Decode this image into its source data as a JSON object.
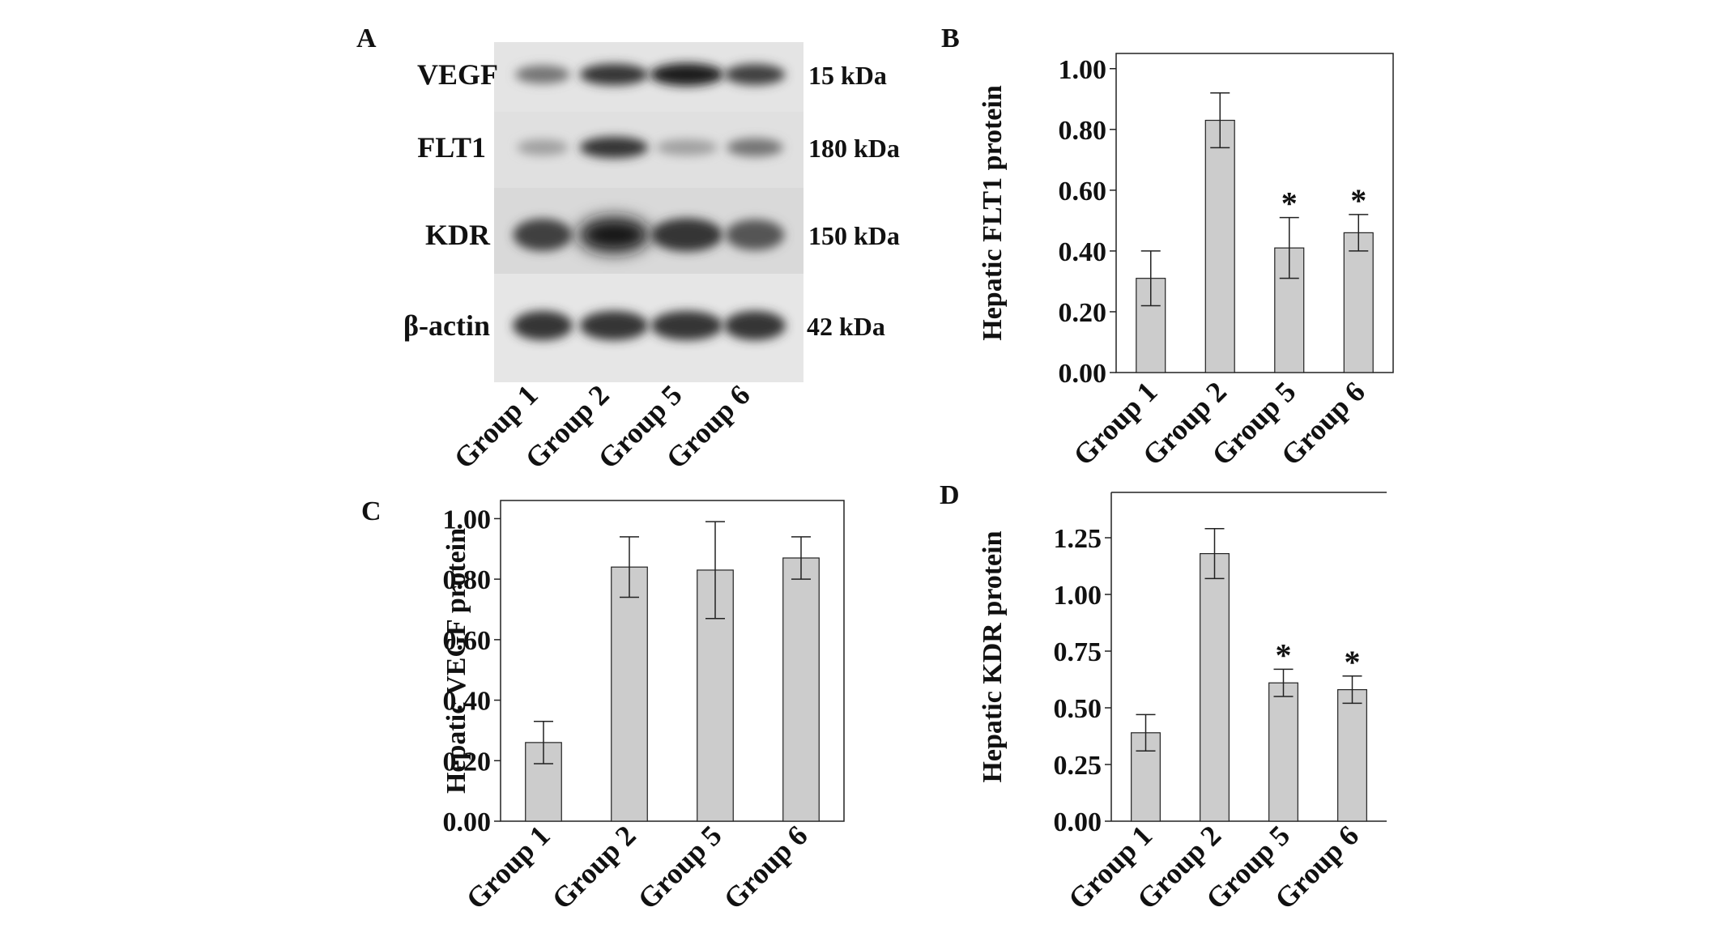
{
  "panels": {
    "A": {
      "letter": "A",
      "lanes": [
        "Group 1",
        "Group 2",
        "Group 5",
        "Group 6"
      ],
      "bands": [
        {
          "name": "VEGF",
          "kda": "15 kDa",
          "intensity": [
            0.55,
            0.85,
            0.95,
            0.8
          ]
        },
        {
          "name": "FLT1",
          "kda": "180 kDa",
          "intensity": [
            0.35,
            0.85,
            0.35,
            0.55
          ]
        },
        {
          "name": "KDR",
          "kda": "150 kDa",
          "intensity": [
            0.8,
            1.0,
            0.85,
            0.7
          ]
        },
        {
          "name": "β-actin",
          "kda": "42 kDa",
          "intensity": [
            0.85,
            0.85,
            0.85,
            0.85
          ]
        }
      ]
    }
  },
  "chart_data": [
    {
      "panel": "B",
      "type": "bar",
      "title": "",
      "xlabel": "",
      "ylabel": "Hepatic FLT1 protein",
      "categories": [
        "Group 1",
        "Group 2",
        "Group 5",
        "Group 6"
      ],
      "values": [
        0.31,
        0.83,
        0.41,
        0.46
      ],
      "errors": [
        0.09,
        0.09,
        0.1,
        0.06
      ],
      "significance": [
        "",
        "",
        "*",
        "*"
      ],
      "ylim": [
        0,
        1.05
      ],
      "yticks": [
        "0.00",
        "0.20",
        "0.40",
        "0.60",
        "0.80",
        "1.00"
      ],
      "ytick_values": [
        0,
        0.2,
        0.4,
        0.6,
        0.8,
        1.0
      ],
      "bar_color": "#cccccc"
    },
    {
      "panel": "C",
      "type": "bar",
      "title": "",
      "xlabel": "",
      "ylabel": "Hepatic VEGF protein",
      "categories": [
        "Group 1",
        "Group 2",
        "Group 5",
        "Group 6"
      ],
      "values": [
        0.26,
        0.84,
        0.83,
        0.87
      ],
      "errors": [
        0.07,
        0.1,
        0.16,
        0.07
      ],
      "significance": [
        "",
        "",
        "",
        ""
      ],
      "ylim": [
        0,
        1.06
      ],
      "yticks": [
        "0.00",
        "0.20",
        "0.40",
        "0.60",
        "0.80",
        "1.00"
      ],
      "ytick_values": [
        0,
        0.2,
        0.4,
        0.6,
        0.8,
        1.0
      ],
      "bar_color": "#cccccc"
    },
    {
      "panel": "D",
      "type": "bar",
      "title": "",
      "xlabel": "",
      "ylabel": "Hepatic KDR protein",
      "categories": [
        "Group 1",
        "Group 2",
        "Group 5",
        "Group 6"
      ],
      "values": [
        0.39,
        1.18,
        0.61,
        0.58
      ],
      "errors": [
        0.08,
        0.11,
        0.06,
        0.06
      ],
      "significance": [
        "",
        "",
        "*",
        "*"
      ],
      "ylim": [
        0,
        1.45
      ],
      "yticks": [
        "0.00",
        "0.25",
        "0.50",
        "0.75",
        "1.00",
        "1.25"
      ],
      "ytick_values": [
        0,
        0.25,
        0.5,
        0.75,
        1.0,
        1.25
      ],
      "bar_color": "#cccccc"
    }
  ]
}
